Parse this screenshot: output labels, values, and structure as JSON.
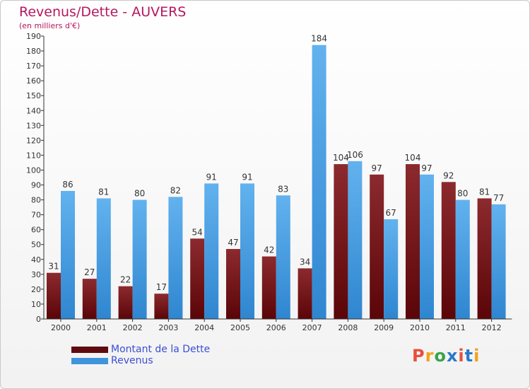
{
  "chart_data": {
    "type": "bar",
    "title": "Revenus/Dette - AUVERS",
    "subtitle": "(en milliers d'€)",
    "categories": [
      "2000",
      "2001",
      "2002",
      "2003",
      "2004",
      "2005",
      "2006",
      "2007",
      "2008",
      "2009",
      "2010",
      "2011",
      "2012"
    ],
    "series": [
      {
        "name": "Montant de la Dette",
        "color": "#7a1a1e",
        "values": [
          31,
          27,
          22,
          17,
          54,
          47,
          42,
          34,
          104,
          97,
          104,
          92,
          81
        ]
      },
      {
        "name": "Revenus",
        "color": "#4aa3e6",
        "values": [
          86,
          81,
          80,
          82,
          91,
          91,
          83,
          184,
          106,
          67,
          97,
          80,
          77
        ]
      }
    ],
    "ylim": [
      0,
      190
    ],
    "ytick_step": 10,
    "grid": false,
    "legend_position": "bottom-left"
  },
  "logo": {
    "text": "Proxiti",
    "colors": [
      "#e94e3d",
      "#f4a21a",
      "#3aa34a",
      "#2a78c8",
      "#e94e3d",
      "#2a78c8",
      "#f4a21a"
    ]
  }
}
